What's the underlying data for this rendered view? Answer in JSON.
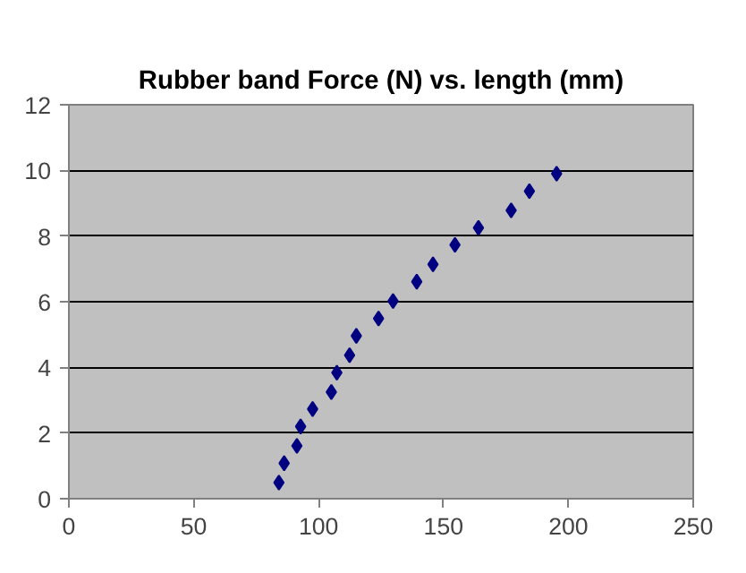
{
  "chart_data": {
    "type": "scatter",
    "title": "Rubber band Force (N) vs. length (mm)",
    "x": [
      84.1,
      86.2,
      91.3,
      92.8,
      97.6,
      105.1,
      107.3,
      112.4,
      115.1,
      124.0,
      129.8,
      139.3,
      145.8,
      154.6,
      164.0,
      177.1,
      184.4,
      195.3
    ],
    "series": [
      {
        "color": "#000080",
        "values": [
          0.49,
          1.08,
          1.61,
          2.2,
          2.73,
          3.25,
          3.84,
          4.37,
          4.96,
          5.49,
          6.02,
          6.61,
          7.14,
          7.73,
          8.25,
          8.78,
          9.37,
          9.9
        ]
      }
    ],
    "xlim": [
      0,
      250
    ],
    "xticks": [
      0,
      50,
      100,
      150,
      200,
      250
    ],
    "ylim": [
      0,
      12
    ],
    "yticks": [
      0,
      2,
      4,
      6,
      8,
      10,
      12
    ],
    "grid": "y",
    "marker": "diamond"
  }
}
